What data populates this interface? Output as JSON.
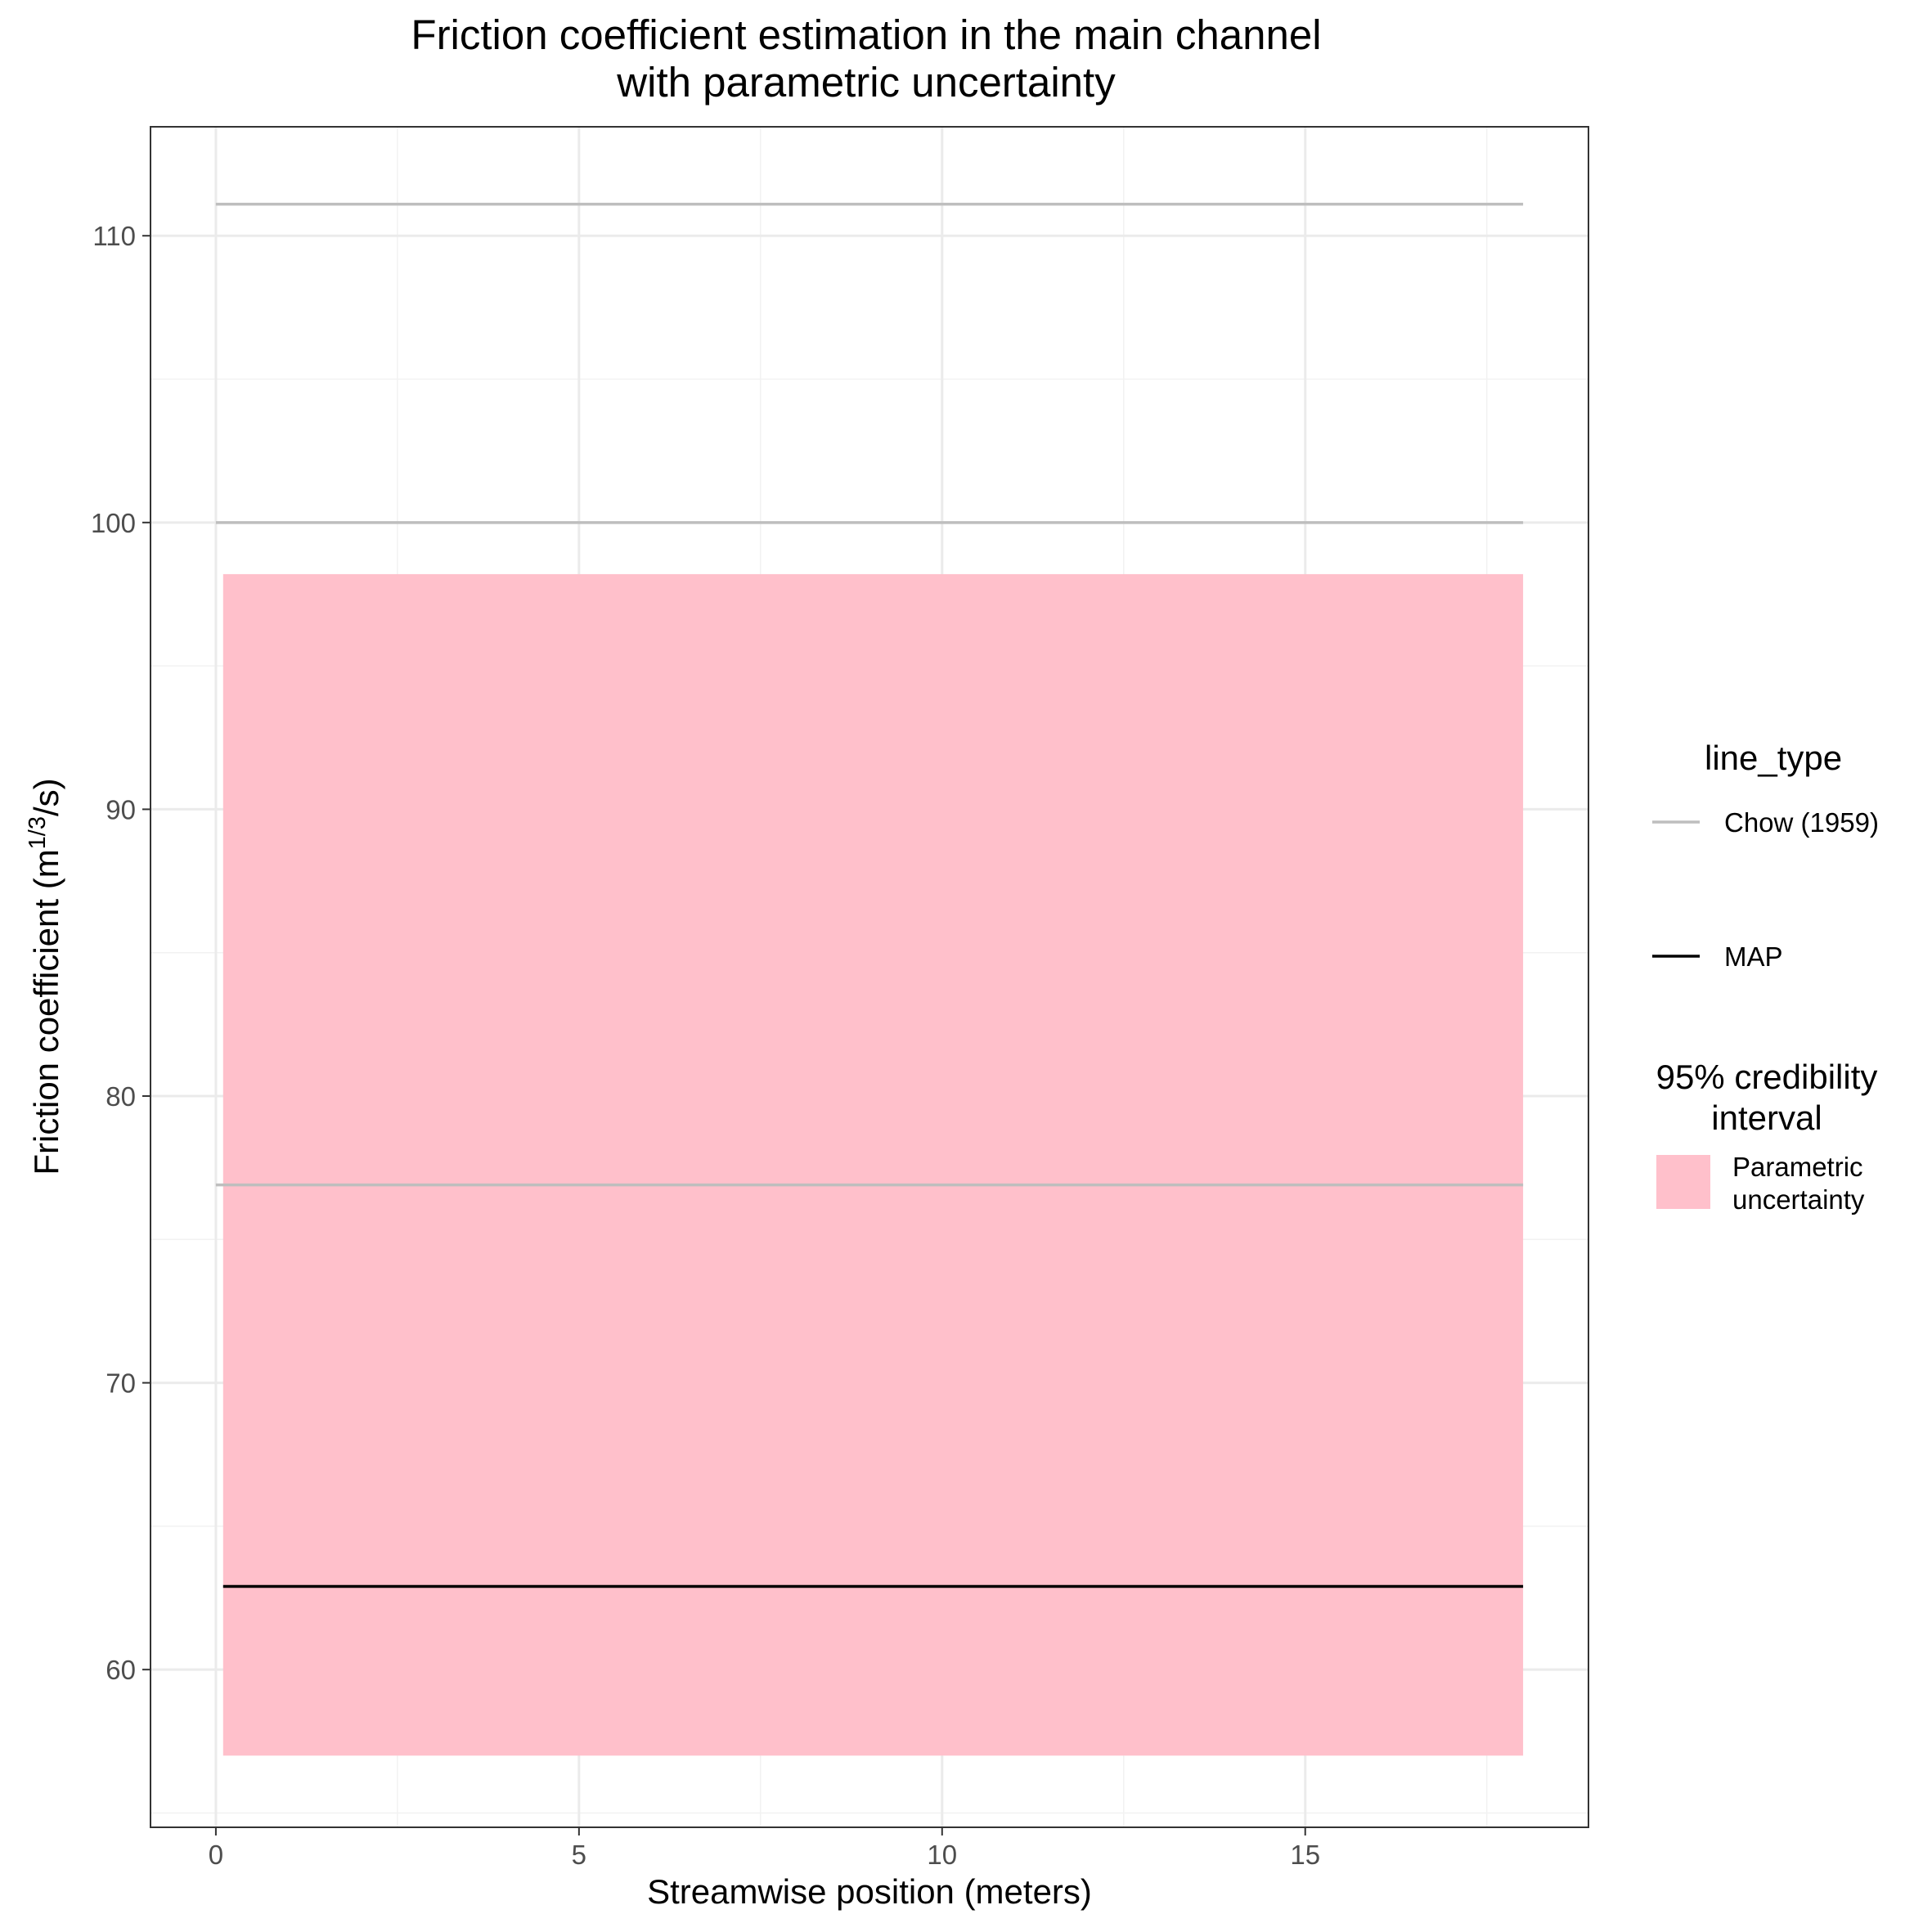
{
  "chart_data": {
    "type": "line",
    "title": "Friction coefficient estimation in the main channel",
    "subtitle": "with parametric uncertainty",
    "xlabel": "Streamwise position (meters)",
    "ylabel_main": "Friction coefficient (m",
    "ylabel_sup": "1/3",
    "ylabel_end": "/s)",
    "xlim": [
      -0.9,
      18.9
    ],
    "ylim": [
      54.5,
      113.8
    ],
    "x_ticks": [
      0,
      5,
      10,
      15
    ],
    "x_tick_labels": [
      "0",
      "5",
      "10",
      "15"
    ],
    "x_minor_ticks": [
      2.5,
      7.5,
      12.5,
      17.5
    ],
    "y_ticks": [
      60,
      70,
      80,
      90,
      100,
      110
    ],
    "y_tick_labels": [
      "60",
      "70",
      "80",
      "90",
      "100",
      "110"
    ],
    "y_minor_ticks": [
      55,
      65,
      75,
      85,
      95,
      105
    ],
    "grid": true,
    "legend_position": "right",
    "ribbon": {
      "name": "Parametric uncertainty",
      "x": [
        0.1,
        18.0
      ],
      "ymin": 57.0,
      "ymax": 98.2,
      "color": "#FFC0CB"
    },
    "series": [
      {
        "name": "Chow (1959)",
        "x": [
          0,
          18.0
        ],
        "values": [
          111.1,
          111.1
        ],
        "color": "#BEBEBE"
      },
      {
        "name": "Chow (1959)",
        "x": [
          0,
          18.0
        ],
        "values": [
          100.0,
          100.0
        ],
        "color": "#BEBEBE"
      },
      {
        "name": "Chow (1959)",
        "x": [
          0,
          18.0
        ],
        "values": [
          76.9,
          76.9
        ],
        "color": "#BEBEBE"
      },
      {
        "name": "MAP",
        "x": [
          0.1,
          18.0
        ],
        "values": [
          62.9,
          62.9
        ],
        "color": "#000000"
      }
    ],
    "legend": {
      "line_title": "line_type",
      "line_items": [
        {
          "label": "Chow (1959)",
          "color": "#BEBEBE"
        },
        {
          "label": "MAP",
          "color": "#000000"
        }
      ],
      "fill_title_line1": "95% credibility",
      "fill_title_line2": "interval",
      "fill_item_line1": "Parametric",
      "fill_item_line2": "uncertainty",
      "fill_color": "#FFC0CB"
    }
  }
}
